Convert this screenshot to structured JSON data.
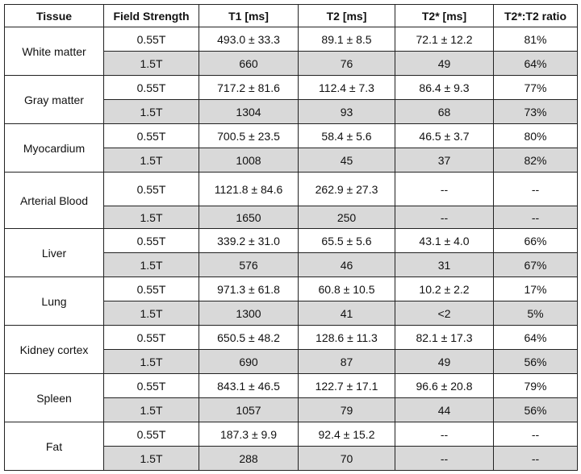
{
  "table": {
    "header": [
      "Tissue",
      "Field Strength",
      "T1 [ms]",
      "T2 [ms]",
      "T2* [ms]",
      "T2*:T2 ratio"
    ],
    "groups": [
      {
        "tissue": "White matter",
        "rows": [
          [
            "0.55T",
            "493.0 ± 33.3",
            "89.1 ± 8.5",
            "72.1 ± 12.2",
            "81%"
          ],
          [
            "1.5T",
            "660",
            "76",
            "49",
            "64%"
          ]
        ]
      },
      {
        "tissue": "Gray matter",
        "rows": [
          [
            "0.55T",
            "717.2 ± 81.6",
            "112.4 ± 7.3",
            "86.4 ± 9.3",
            "77%"
          ],
          [
            "1.5T",
            "1304",
            "93",
            "68",
            "73%"
          ]
        ]
      },
      {
        "tissue": "Myocardium",
        "rows": [
          [
            "0.55T",
            "700.5 ± 23.5",
            "58.4 ± 5.6",
            "46.5 ± 3.7",
            "80%"
          ],
          [
            "1.5T",
            "1008",
            "45",
            "37",
            "82%"
          ]
        ]
      },
      {
        "tissue": "Arterial Blood",
        "rows": [
          [
            "0.55T",
            "1121.8 ± 84.6",
            "262.9 ± 27.3",
            "--",
            "--"
          ],
          [
            "1.5T",
            "1650",
            "250",
            "--",
            "--"
          ]
        ]
      },
      {
        "tissue": "Liver",
        "rows": [
          [
            "0.55T",
            "339.2 ± 31.0",
            "65.5 ± 5.6",
            "43.1 ± 4.0",
            "66%"
          ],
          [
            "1.5T",
            "576",
            "46",
            "31",
            "67%"
          ]
        ]
      },
      {
        "tissue": "Lung",
        "rows": [
          [
            "0.55T",
            "971.3 ± 61.8",
            "60.8 ± 10.5",
            "10.2 ± 2.2",
            "17%"
          ],
          [
            "1.5T",
            "1300",
            "41",
            "<2",
            "5%"
          ]
        ]
      },
      {
        "tissue": "Kidney cortex",
        "rows": [
          [
            "0.55T",
            "650.5 ± 48.2",
            "128.6 ± 11.3",
            "82.1 ± 17.3",
            "64%"
          ],
          [
            "1.5T",
            "690",
            "87",
            "49",
            "56%"
          ]
        ]
      },
      {
        "tissue": "Spleen",
        "rows": [
          [
            "0.55T",
            "843.1 ± 46.5",
            "122.7 ± 17.1",
            "96.6 ± 20.8",
            "79%"
          ],
          [
            "1.5T",
            "1057",
            "79",
            "44",
            "56%"
          ]
        ]
      },
      {
        "tissue": "Fat",
        "rows": [
          [
            "0.55T",
            "187.3 ± 9.9",
            "92.4 ± 15.2",
            "--",
            "--"
          ],
          [
            "1.5T",
            "288",
            "70",
            "--",
            "--"
          ]
        ]
      }
    ]
  }
}
